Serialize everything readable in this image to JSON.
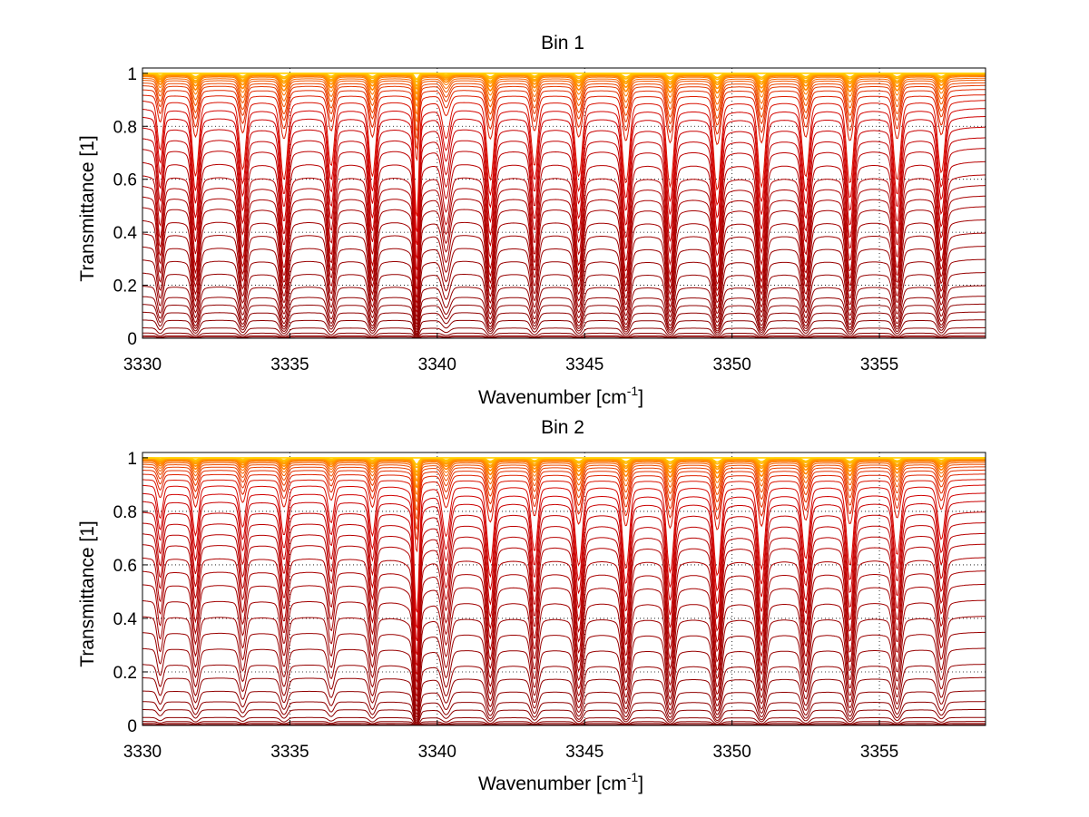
{
  "chart_data": [
    {
      "type": "line",
      "title": "Bin 1",
      "xlabel": "Wavenumber [cm",
      "xlabel_sup": "-1",
      "xlabel_end": "]",
      "ylabel": "Transmittance [1]",
      "xlim": [
        3330,
        3358.6
      ],
      "ylim": [
        0,
        1.02
      ],
      "xticks": [
        "3330",
        "3335",
        "3340",
        "3345",
        "3350",
        "3355"
      ],
      "xtick_values": [
        3330,
        3335,
        3340,
        3345,
        3350,
        3355
      ],
      "yticks": [
        "0",
        "0.2",
        "0.4",
        "0.6",
        "0.8",
        "1"
      ],
      "ytick_values": [
        0,
        0.2,
        0.4,
        0.6,
        0.8,
        1
      ],
      "grid": true,
      "grid_style": "dotted",
      "series_colors": [
        "#8b0000",
        "#d40000",
        "#ff7f00",
        "#ffd000"
      ],
      "series_baselines": [
        0.0,
        0.005,
        0.01,
        0.02,
        0.04,
        0.07,
        0.1,
        0.13,
        0.16,
        0.2,
        0.25,
        0.3,
        0.35,
        0.4,
        0.45,
        0.5,
        0.54,
        0.58,
        0.62,
        0.67,
        0.72,
        0.76,
        0.8,
        0.84,
        0.87,
        0.9,
        0.92,
        0.94,
        0.955,
        0.965,
        0.975,
        0.982,
        0.988,
        0.992,
        0.995,
        0.997,
        0.998,
        0.999,
        0.9995,
        1.0
      ],
      "absorption_lines": [
        {
          "x": 3330.6,
          "depth": 0.55,
          "width": 0.12
        },
        {
          "x": 3331.8,
          "depth": 0.9,
          "width": 0.14
        },
        {
          "x": 3333.4,
          "depth": 0.8,
          "width": 0.14
        },
        {
          "x": 3334.8,
          "depth": 0.95,
          "width": 0.15
        },
        {
          "x": 3336.4,
          "depth": 0.75,
          "width": 0.14
        },
        {
          "x": 3337.8,
          "depth": 0.9,
          "width": 0.14
        },
        {
          "x": 3339.3,
          "depth": 1.6,
          "width": 0.09
        },
        {
          "x": 3340.3,
          "depth": 0.4,
          "width": 0.16
        },
        {
          "x": 3341.8,
          "depth": 0.95,
          "width": 0.15
        },
        {
          "x": 3343.3,
          "depth": 0.75,
          "width": 0.14
        },
        {
          "x": 3344.8,
          "depth": 0.9,
          "width": 0.15
        },
        {
          "x": 3346.4,
          "depth": 1.0,
          "width": 0.15
        },
        {
          "x": 3347.9,
          "depth": 1.05,
          "width": 0.15
        },
        {
          "x": 3349.5,
          "depth": 1.1,
          "width": 0.15
        },
        {
          "x": 3351.0,
          "depth": 1.05,
          "width": 0.15
        },
        {
          "x": 3352.5,
          "depth": 0.9,
          "width": 0.15
        },
        {
          "x": 3354.0,
          "depth": 1.0,
          "width": 0.15
        },
        {
          "x": 3355.6,
          "depth": 0.95,
          "width": 0.15
        },
        {
          "x": 3357.1,
          "depth": 0.85,
          "width": 0.15
        }
      ]
    },
    {
      "type": "line",
      "title": "Bin 2",
      "xlabel": "Wavenumber [cm",
      "xlabel_sup": "-1",
      "xlabel_end": "]",
      "ylabel": "Transmittance [1]",
      "xlim": [
        3330,
        3358.6
      ],
      "ylim": [
        0,
        1.02
      ],
      "xticks": [
        "3330",
        "3335",
        "3340",
        "3345",
        "3350",
        "3355"
      ],
      "xtick_values": [
        3330,
        3335,
        3340,
        3345,
        3350,
        3355
      ],
      "yticks": [
        "0",
        "0.2",
        "0.4",
        "0.6",
        "0.8",
        "1"
      ],
      "ytick_values": [
        0,
        0.2,
        0.4,
        0.6,
        0.8,
        1
      ],
      "grid": true,
      "grid_style": "dotted",
      "series_colors": [
        "#8b0000",
        "#d40000",
        "#ff7f00",
        "#ffd000"
      ],
      "series_baselines": [
        0.0,
        0.003,
        0.008,
        0.015,
        0.03,
        0.06,
        0.09,
        0.13,
        0.18,
        0.23,
        0.29,
        0.35,
        0.41,
        0.47,
        0.53,
        0.58,
        0.63,
        0.68,
        0.72,
        0.76,
        0.8,
        0.84,
        0.87,
        0.9,
        0.92,
        0.94,
        0.955,
        0.967,
        0.976,
        0.983,
        0.988,
        0.992,
        0.995,
        0.997,
        0.998,
        0.999,
        0.9995,
        1.0
      ],
      "absorption_lines": [
        {
          "x": 3330.6,
          "depth": 0.35,
          "width": 0.12
        },
        {
          "x": 3331.8,
          "depth": 0.55,
          "width": 0.13
        },
        {
          "x": 3333.4,
          "depth": 0.45,
          "width": 0.13
        },
        {
          "x": 3334.8,
          "depth": 0.55,
          "width": 0.14
        },
        {
          "x": 3336.4,
          "depth": 0.4,
          "width": 0.13
        },
        {
          "x": 3337.8,
          "depth": 0.55,
          "width": 0.13
        },
        {
          "x": 3339.3,
          "depth": 1.8,
          "width": 0.1
        },
        {
          "x": 3340.3,
          "depth": 0.55,
          "width": 0.16
        },
        {
          "x": 3341.8,
          "depth": 0.9,
          "width": 0.15
        },
        {
          "x": 3343.3,
          "depth": 0.75,
          "width": 0.14
        },
        {
          "x": 3344.8,
          "depth": 0.95,
          "width": 0.15
        },
        {
          "x": 3346.4,
          "depth": 1.0,
          "width": 0.15
        },
        {
          "x": 3347.9,
          "depth": 1.05,
          "width": 0.15
        },
        {
          "x": 3349.5,
          "depth": 1.1,
          "width": 0.15
        },
        {
          "x": 3351.0,
          "depth": 1.0,
          "width": 0.15
        },
        {
          "x": 3352.5,
          "depth": 0.85,
          "width": 0.15
        },
        {
          "x": 3354.0,
          "depth": 0.95,
          "width": 0.15
        },
        {
          "x": 3355.6,
          "depth": 0.8,
          "width": 0.15
        },
        {
          "x": 3357.1,
          "depth": 0.6,
          "width": 0.15
        }
      ]
    }
  ]
}
